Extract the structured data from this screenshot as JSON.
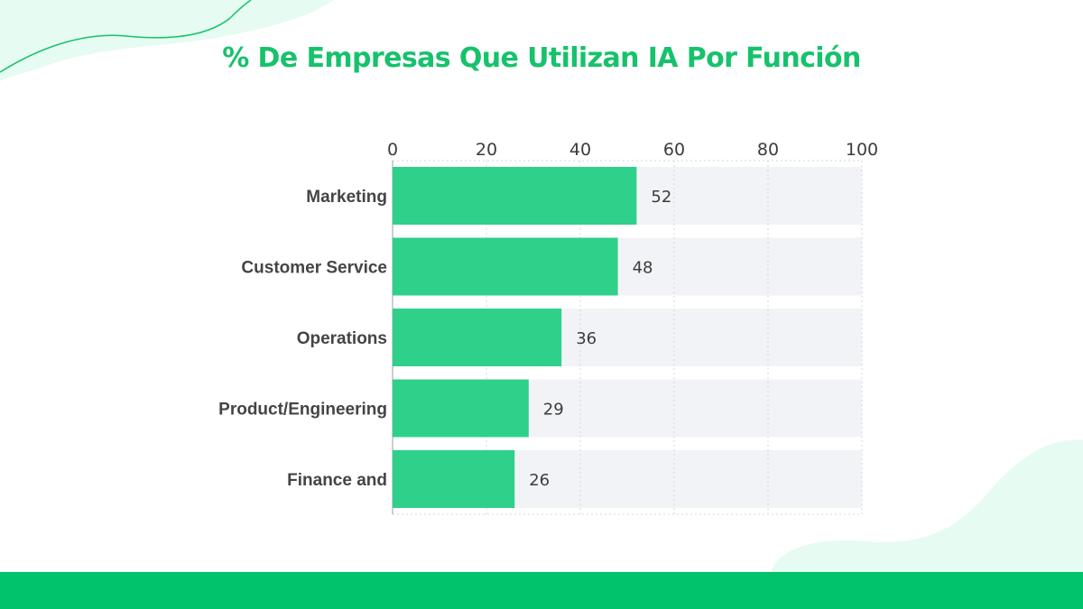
{
  "title": "% De Empresas Que Utilizan IA Por Función",
  "colors": {
    "accent": "#16c26b",
    "bar": "#2fd08a",
    "track": "#f2f3f7",
    "footer": "#00c36b",
    "blob": "#e6fbf1"
  },
  "chart_data": {
    "type": "bar",
    "orientation": "horizontal",
    "title": "% De Empresas Que Utilizan IA Por Función",
    "categories": [
      "Marketing",
      "Customer Service",
      "Operations",
      "Product/Engineering",
      "Finance and"
    ],
    "values": [
      52,
      48,
      36,
      29,
      26
    ],
    "xlim": [
      0,
      100
    ],
    "x_ticks": [
      0,
      20,
      40,
      60,
      80,
      100
    ],
    "x_axis_position": "top",
    "data_labels": true,
    "grid": true,
    "legend": "none"
  }
}
